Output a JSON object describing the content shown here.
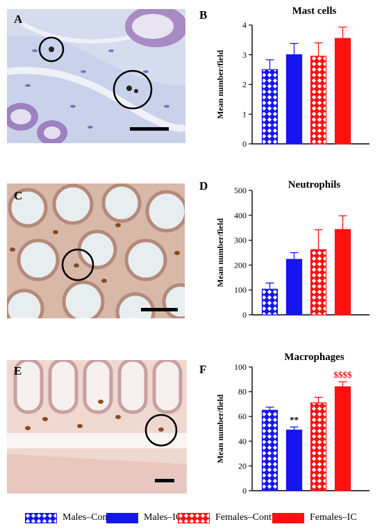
{
  "panels": {
    "A": {
      "letter": "A"
    },
    "B": {
      "letter": "B"
    },
    "C": {
      "letter": "C"
    },
    "D": {
      "letter": "D"
    },
    "E": {
      "letter": "E"
    },
    "F": {
      "letter": "F"
    }
  },
  "legend": [
    {
      "label": "Males–Control",
      "color": "#1515ee",
      "pattern": "hatch-blue"
    },
    {
      "label": "Males–IC",
      "color": "#1515ee",
      "pattern": "solid"
    },
    {
      "label": "Females–Control",
      "color": "#ff1010",
      "pattern": "hatch-red"
    },
    {
      "label": "Females–IC",
      "color": "#ff1010",
      "pattern": "solid"
    }
  ],
  "chart_data": [
    {
      "type": "bar",
      "panel": "B",
      "title": "Mast cells",
      "ylabel": "Mean number/field",
      "xlabel": "",
      "categories": [
        "Males–Control",
        "Males–IC",
        "Females–Control",
        "Females–IC"
      ],
      "values": [
        2.5,
        3.0,
        2.95,
        3.55
      ],
      "errors": [
        0.33,
        0.38,
        0.45,
        0.38
      ],
      "annotations": [
        "",
        "",
        "",
        ""
      ],
      "ylim": [
        0,
        4
      ],
      "yticks": [
        "0",
        "1",
        "2",
        "3",
        "4"
      ]
    },
    {
      "type": "bar",
      "panel": "D",
      "title": "Neutrophils",
      "ylabel": "Mean number/field",
      "xlabel": "",
      "categories": [
        "Males–Control",
        "Males–IC",
        "Females–Control",
        "Females–IC"
      ],
      "values": [
        103,
        223,
        262,
        343
      ],
      "errors": [
        25,
        27,
        80,
        55
      ],
      "annotations": [
        "",
        "",
        "",
        ""
      ],
      "ylim": [
        0,
        500
      ],
      "yticks": [
        "0",
        "100",
        "200",
        "300",
        "400",
        "500"
      ]
    },
    {
      "type": "bar",
      "panel": "F",
      "title": "Macrophages",
      "ylabel": "Mean number/field",
      "xlabel": "",
      "categories": [
        "Males–Control",
        "Males–IC",
        "Females–Control",
        "Females–IC"
      ],
      "values": [
        65,
        49,
        71,
        84
      ],
      "errors": [
        2.5,
        2.5,
        4.5,
        4
      ],
      "annotations": [
        "",
        "**",
        "",
        "$$$$"
      ],
      "ylim": [
        0,
        100
      ],
      "yticks": [
        "0",
        "20",
        "40",
        "60",
        "80",
        "100"
      ]
    }
  ]
}
